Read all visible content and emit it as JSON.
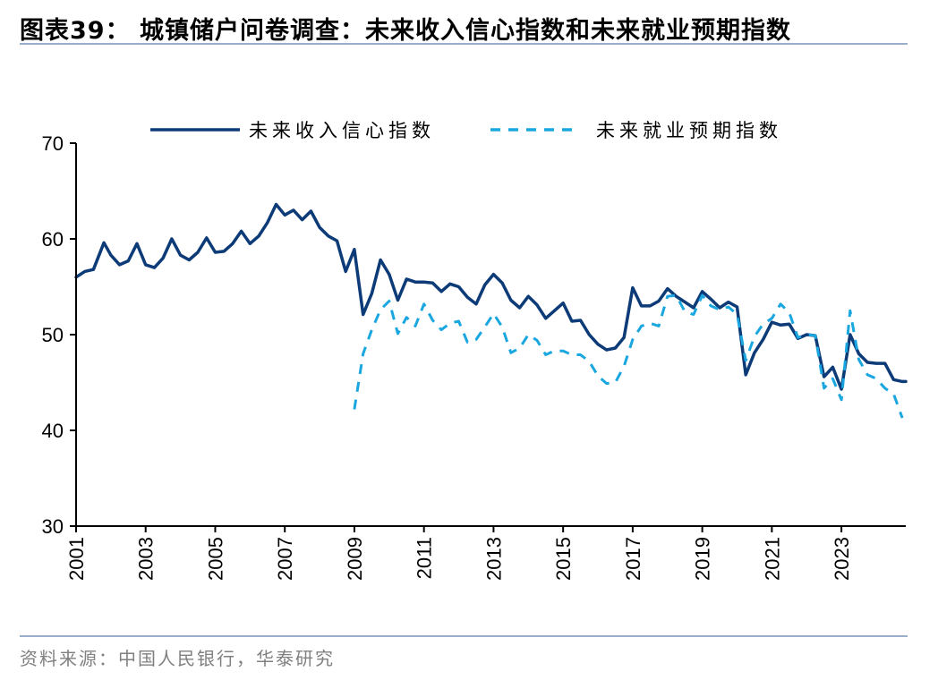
{
  "header": {
    "title": "图表39：  城镇储户问卷调查：未来收入信心指数和未来就业预期指数"
  },
  "footer": {
    "source": "资料来源：中国人民银行，华泰研究"
  },
  "colors": {
    "income": "#0c3b78",
    "employment": "#1aa7e0",
    "rule": "#9aaecc"
  },
  "chart_data": {
    "type": "line",
    "title": "",
    "xlabel": "",
    "ylabel": "",
    "ylim": [
      30,
      70
    ],
    "yticks": [
      30,
      40,
      50,
      60,
      70
    ],
    "xlim": [
      2001,
      2024.85
    ],
    "xticks": [
      "2001",
      "2003",
      "2005",
      "2007",
      "2009",
      "2011",
      "2013",
      "2015",
      "2017",
      "2019",
      "2021",
      "2023"
    ],
    "grid": false,
    "legend_position": "top",
    "series": [
      {
        "name": "未来收入信心指数",
        "style": "solid",
        "points": [
          [
            2001.0,
            56.0
          ],
          [
            2001.25,
            56.6
          ],
          [
            2001.5,
            56.8
          ],
          [
            2001.8,
            59.6
          ],
          [
            2002.0,
            58.3
          ],
          [
            2002.25,
            57.3
          ],
          [
            2002.5,
            57.7
          ],
          [
            2002.75,
            59.5
          ],
          [
            2003.0,
            57.3
          ],
          [
            2003.25,
            57.0
          ],
          [
            2003.5,
            58.0
          ],
          [
            2003.75,
            60.0
          ],
          [
            2004.0,
            58.3
          ],
          [
            2004.25,
            57.8
          ],
          [
            2004.5,
            58.6
          ],
          [
            2004.75,
            60.1
          ],
          [
            2005.0,
            58.6
          ],
          [
            2005.25,
            58.7
          ],
          [
            2005.5,
            59.5
          ],
          [
            2005.75,
            60.8
          ],
          [
            2006.0,
            59.5
          ],
          [
            2006.25,
            60.3
          ],
          [
            2006.5,
            61.7
          ],
          [
            2006.75,
            63.6
          ],
          [
            2007.0,
            62.5
          ],
          [
            2007.25,
            63.0
          ],
          [
            2007.5,
            62.0
          ],
          [
            2007.75,
            62.9
          ],
          [
            2008.0,
            61.2
          ],
          [
            2008.25,
            60.3
          ],
          [
            2008.5,
            59.8
          ],
          [
            2008.75,
            56.6
          ],
          [
            2009.0,
            58.9
          ],
          [
            2009.25,
            52.1
          ],
          [
            2009.5,
            54.3
          ],
          [
            2009.75,
            57.8
          ],
          [
            2010.0,
            56.3
          ],
          [
            2010.25,
            53.6
          ],
          [
            2010.5,
            55.8
          ],
          [
            2010.75,
            55.5
          ],
          [
            2011.0,
            55.5
          ],
          [
            2011.25,
            55.4
          ],
          [
            2011.5,
            54.5
          ],
          [
            2011.75,
            55.3
          ],
          [
            2012.0,
            55.0
          ],
          [
            2012.25,
            53.9
          ],
          [
            2012.5,
            53.2
          ],
          [
            2012.75,
            55.2
          ],
          [
            2013.0,
            56.3
          ],
          [
            2013.25,
            55.4
          ],
          [
            2013.5,
            53.6
          ],
          [
            2013.75,
            52.8
          ],
          [
            2014.0,
            54.0
          ],
          [
            2014.25,
            53.1
          ],
          [
            2014.5,
            51.7
          ],
          [
            2014.75,
            52.5
          ],
          [
            2015.0,
            53.3
          ],
          [
            2015.25,
            51.4
          ],
          [
            2015.5,
            51.5
          ],
          [
            2015.75,
            50.0
          ],
          [
            2016.0,
            49.0
          ],
          [
            2016.25,
            48.4
          ],
          [
            2016.5,
            48.6
          ],
          [
            2016.75,
            49.7
          ],
          [
            2017.0,
            54.9
          ],
          [
            2017.25,
            53.0
          ],
          [
            2017.5,
            53.0
          ],
          [
            2017.75,
            53.5
          ],
          [
            2018.0,
            54.8
          ],
          [
            2018.25,
            54.0
          ],
          [
            2018.5,
            53.4
          ],
          [
            2018.75,
            52.8
          ],
          [
            2019.0,
            54.5
          ],
          [
            2019.25,
            53.7
          ],
          [
            2019.5,
            52.8
          ],
          [
            2019.75,
            53.4
          ],
          [
            2020.0,
            52.9
          ],
          [
            2020.25,
            45.8
          ],
          [
            2020.5,
            48.1
          ],
          [
            2020.75,
            49.5
          ],
          [
            2021.0,
            51.3
          ],
          [
            2021.25,
            51.0
          ],
          [
            2021.5,
            51.1
          ],
          [
            2021.75,
            49.6
          ],
          [
            2022.0,
            50.0
          ],
          [
            2022.25,
            49.9
          ],
          [
            2022.5,
            45.6
          ],
          [
            2022.75,
            46.6
          ],
          [
            2023.0,
            44.3
          ],
          [
            2023.25,
            50.0
          ],
          [
            2023.5,
            48.0
          ],
          [
            2023.75,
            47.1
          ],
          [
            2024.0,
            47.0
          ],
          [
            2024.25,
            47.0
          ],
          [
            2024.5,
            45.3
          ],
          [
            2024.75,
            45.1
          ],
          [
            2024.85,
            45.1
          ]
        ]
      },
      {
        "name": "未来就业预期指数",
        "style": "dashed",
        "points": [
          [
            2009.0,
            42.2
          ],
          [
            2009.25,
            48.0
          ],
          [
            2009.5,
            50.5
          ],
          [
            2009.75,
            52.6
          ],
          [
            2010.0,
            53.5
          ],
          [
            2010.25,
            50.1
          ],
          [
            2010.5,
            51.8
          ],
          [
            2010.75,
            50.9
          ],
          [
            2011.0,
            53.2
          ],
          [
            2011.25,
            51.5
          ],
          [
            2011.5,
            50.5
          ],
          [
            2011.75,
            51.2
          ],
          [
            2012.0,
            51.4
          ],
          [
            2012.25,
            49.2
          ],
          [
            2012.5,
            49.5
          ],
          [
            2012.75,
            50.8
          ],
          [
            2013.0,
            52.2
          ],
          [
            2013.25,
            50.8
          ],
          [
            2013.5,
            48.1
          ],
          [
            2013.75,
            48.6
          ],
          [
            2014.0,
            50.0
          ],
          [
            2014.25,
            49.4
          ],
          [
            2014.5,
            47.9
          ],
          [
            2014.75,
            48.3
          ],
          [
            2015.0,
            48.3
          ],
          [
            2015.25,
            47.9
          ],
          [
            2015.5,
            47.9
          ],
          [
            2015.75,
            47.2
          ],
          [
            2016.0,
            45.7
          ],
          [
            2016.25,
            44.9
          ],
          [
            2016.5,
            45.0
          ],
          [
            2016.75,
            46.7
          ],
          [
            2017.0,
            49.5
          ],
          [
            2017.25,
            50.9
          ],
          [
            2017.5,
            51.2
          ],
          [
            2017.75,
            50.9
          ],
          [
            2018.0,
            54.0
          ],
          [
            2018.25,
            54.1
          ],
          [
            2018.5,
            52.4
          ],
          [
            2018.75,
            52.1
          ],
          [
            2019.0,
            54.1
          ],
          [
            2019.25,
            53.0
          ],
          [
            2019.5,
            52.6
          ],
          [
            2019.75,
            52.9
          ],
          [
            2020.0,
            52.1
          ],
          [
            2020.25,
            47.3
          ],
          [
            2020.5,
            49.8
          ],
          [
            2020.75,
            51.1
          ],
          [
            2021.0,
            51.7
          ],
          [
            2021.25,
            53.2
          ],
          [
            2021.5,
            52.3
          ],
          [
            2021.75,
            49.7
          ],
          [
            2022.0,
            50.0
          ],
          [
            2022.25,
            49.9
          ],
          [
            2022.5,
            44.4
          ],
          [
            2022.75,
            45.4
          ],
          [
            2023.0,
            43.2
          ],
          [
            2023.25,
            52.5
          ],
          [
            2023.5,
            47.4
          ],
          [
            2023.75,
            45.8
          ],
          [
            2024.0,
            45.4
          ],
          [
            2024.25,
            44.4
          ],
          [
            2024.5,
            43.8
          ],
          [
            2024.75,
            41.3
          ]
        ]
      }
    ]
  }
}
